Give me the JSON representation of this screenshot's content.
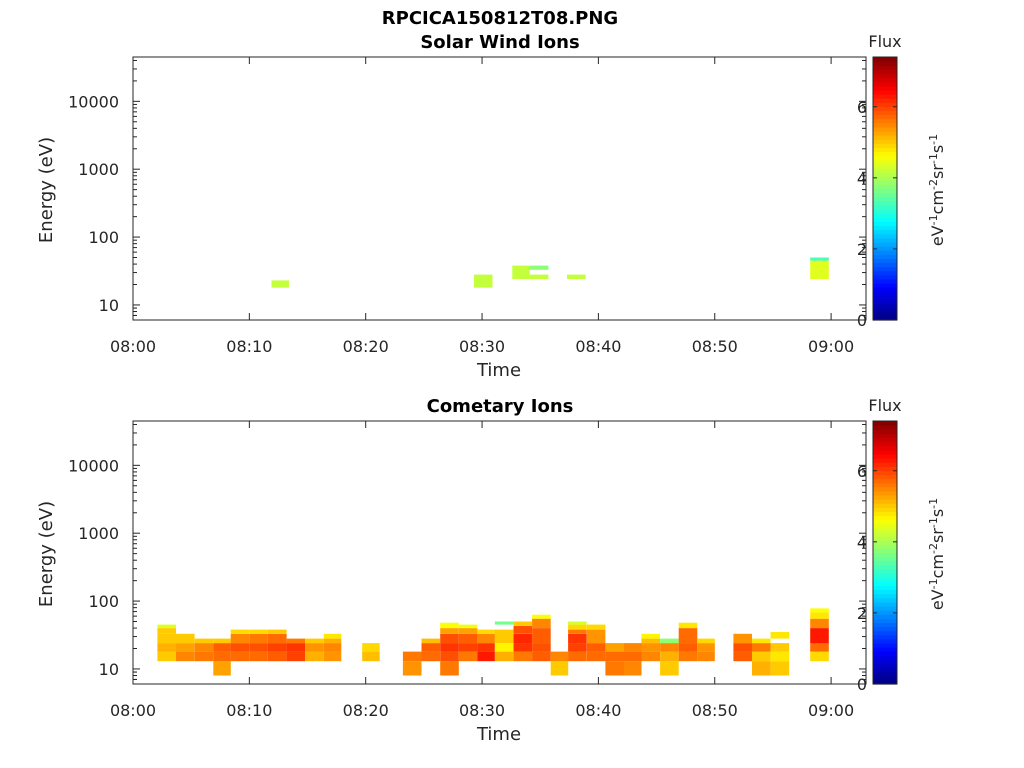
{
  "figure": {
    "title": "RPCICA150812T08.PNG"
  },
  "chart_data": [
    {
      "type": "heatmap",
      "title": "Solar Wind Ions",
      "xlabel": "Time",
      "ylabel": "Energy (eV)",
      "x_ticks": [
        "08:00",
        "08:10",
        "08:20",
        "08:30",
        "08:40",
        "08:50",
        "09:00"
      ],
      "x_range_min": [
        0,
        63
      ],
      "y_scale": "log",
      "y_range_eV": [
        6,
        45000
      ],
      "y_ticks": [
        "10",
        "100",
        "1000",
        "10000"
      ],
      "colorbar": {
        "label": "Flux",
        "unit": "eV-1 cm-2 sr-1 s-1",
        "min": 0,
        "max": 7.4,
        "ticks": [
          "0",
          "2",
          "4",
          "6"
        ]
      },
      "cells": [
        {
          "t0": 11.9,
          "t1": 13.4,
          "e0": 18,
          "e1": 23,
          "value": 4.2
        },
        {
          "t0": 29.3,
          "t1": 30.9,
          "e0": 18,
          "e1": 28,
          "value": 4.2
        },
        {
          "t0": 32.6,
          "t1": 34.1,
          "e0": 24,
          "e1": 38,
          "value": 4.2
        },
        {
          "t0": 34.1,
          "t1": 35.7,
          "e0": 24,
          "e1": 28,
          "value": 4.2
        },
        {
          "t0": 34.1,
          "t1": 35.7,
          "e0": 33,
          "e1": 38,
          "value": 3.8
        },
        {
          "t0": 37.3,
          "t1": 38.9,
          "e0": 24,
          "e1": 28,
          "value": 4.2
        },
        {
          "t0": 58.2,
          "t1": 59.8,
          "e0": 24,
          "e1": 45,
          "value": 4.4
        },
        {
          "t0": 58.2,
          "t1": 59.8,
          "e0": 45,
          "e1": 50,
          "value": 3.3
        }
      ]
    },
    {
      "type": "heatmap",
      "title": "Cometary Ions",
      "xlabel": "Time",
      "ylabel": "Energy (eV)",
      "x_ticks": [
        "08:00",
        "08:10",
        "08:20",
        "08:30",
        "08:40",
        "08:50",
        "09:00"
      ],
      "x_range_min": [
        0,
        63
      ],
      "y_scale": "log",
      "y_range_eV": [
        6,
        45000
      ],
      "y_ticks": [
        "10",
        "100",
        "1000",
        "10000"
      ],
      "colorbar": {
        "label": "Flux",
        "unit": "eV-1 cm-2 sr-1 s-1",
        "min": 0,
        "max": 7.4,
        "ticks": [
          "0",
          "2",
          "4",
          "6"
        ]
      },
      "columns": [
        {
          "t0": 2.1,
          "t1": 3.7,
          "bands": [
            [
              13,
              18,
              5.0
            ],
            [
              18,
              24,
              5.2
            ],
            [
              24,
              33,
              5.0
            ],
            [
              33,
              40,
              5.0
            ],
            [
              40,
              45,
              4.4
            ]
          ]
        },
        {
          "t0": 3.7,
          "t1": 5.3,
          "bands": [
            [
              13,
              18,
              5.5
            ],
            [
              18,
              24,
              5.3
            ],
            [
              24,
              33,
              5.0
            ]
          ]
        },
        {
          "t0": 5.3,
          "t1": 6.9,
          "bands": [
            [
              13,
              18,
              5.6
            ],
            [
              18,
              24,
              5.5
            ],
            [
              24,
              28,
              5.0
            ]
          ]
        },
        {
          "t0": 6.9,
          "t1": 8.4,
          "bands": [
            [
              8,
              13,
              5.3
            ],
            [
              13,
              18,
              5.7
            ],
            [
              18,
              24,
              5.8
            ],
            [
              24,
              28,
              5.0
            ]
          ]
        },
        {
          "t0": 8.4,
          "t1": 10.0,
          "bands": [
            [
              13,
              18,
              5.7
            ],
            [
              18,
              24,
              5.9
            ],
            [
              24,
              33,
              5.5
            ],
            [
              33,
              38,
              4.9
            ]
          ]
        },
        {
          "t0": 10.0,
          "t1": 11.6,
          "bands": [
            [
              13,
              18,
              5.7
            ],
            [
              18,
              24,
              5.9
            ],
            [
              24,
              33,
              5.6
            ],
            [
              33,
              38,
              4.9
            ]
          ]
        },
        {
          "t0": 11.6,
          "t1": 13.2,
          "bands": [
            [
              13,
              18,
              5.8
            ],
            [
              18,
              24,
              6.0
            ],
            [
              24,
              33,
              5.7
            ],
            [
              33,
              38,
              5.0
            ]
          ]
        },
        {
          "t0": 13.2,
          "t1": 14.8,
          "bands": [
            [
              13,
              18,
              6.0
            ],
            [
              18,
              24,
              6.1
            ],
            [
              24,
              28,
              5.6
            ]
          ]
        },
        {
          "t0": 14.8,
          "t1": 16.4,
          "bands": [
            [
              13,
              18,
              5.2
            ],
            [
              18,
              24,
              5.4
            ],
            [
              24,
              28,
              5.0
            ]
          ]
        },
        {
          "t0": 16.4,
          "t1": 17.9,
          "bands": [
            [
              13,
              18,
              5.4
            ],
            [
              18,
              24,
              5.5
            ],
            [
              24,
              28,
              5.2
            ],
            [
              28,
              33,
              4.8
            ]
          ]
        },
        {
          "t0": 19.7,
          "t1": 21.2,
          "bands": [
            [
              13,
              18,
              5.1
            ],
            [
              18,
              24,
              4.9
            ]
          ]
        },
        {
          "t0": 23.2,
          "t1": 24.8,
          "bands": [
            [
              8,
              13,
              5.4
            ],
            [
              13,
              18,
              5.6
            ]
          ]
        },
        {
          "t0": 24.8,
          "t1": 26.4,
          "bands": [
            [
              13,
              18,
              5.7
            ],
            [
              18,
              24,
              5.8
            ],
            [
              24,
              28,
              5.1
            ]
          ]
        },
        {
          "t0": 26.4,
          "t1": 28.0,
          "bands": [
            [
              8,
              13,
              5.6
            ],
            [
              13,
              18,
              5.9
            ],
            [
              18,
              24,
              6.1
            ],
            [
              24,
              33,
              5.9
            ],
            [
              33,
              40,
              5.3
            ],
            [
              40,
              48,
              4.6
            ]
          ]
        },
        {
          "t0": 28.0,
          "t1": 29.6,
          "bands": [
            [
              13,
              18,
              5.6
            ],
            [
              18,
              24,
              6.0
            ],
            [
              24,
              33,
              5.8
            ],
            [
              33,
              40,
              5.3
            ],
            [
              40,
              45,
              4.5
            ]
          ]
        },
        {
          "t0": 29.6,
          "t1": 31.1,
          "bands": [
            [
              13,
              18,
              6.3
            ],
            [
              18,
              24,
              6.1
            ],
            [
              24,
              33,
              5.5
            ],
            [
              33,
              38,
              4.9
            ]
          ]
        },
        {
          "t0": 31.1,
          "t1": 32.7,
          "bands": [
            [
              13,
              18,
              5.2
            ],
            [
              18,
              24,
              4.7
            ],
            [
              24,
              38,
              5.0
            ],
            [
              45,
              50,
              3.6
            ]
          ]
        },
        {
          "t0": 32.7,
          "t1": 34.3,
          "bands": [
            [
              13,
              18,
              5.6
            ],
            [
              18,
              24,
              6.1
            ],
            [
              24,
              33,
              6.2
            ],
            [
              33,
              43,
              5.9
            ],
            [
              43,
              50,
              5.0
            ]
          ]
        },
        {
          "t0": 34.3,
          "t1": 35.9,
          "bands": [
            [
              13,
              18,
              5.8
            ],
            [
              18,
              24,
              5.9
            ],
            [
              24,
              40,
              5.8
            ],
            [
              40,
              55,
              5.5
            ],
            [
              55,
              63,
              4.6
            ]
          ]
        },
        {
          "t0": 35.9,
          "t1": 37.4,
          "bands": [
            [
              8,
              13,
              5.0
            ],
            [
              13,
              18,
              5.5
            ]
          ]
        },
        {
          "t0": 37.4,
          "t1": 39.0,
          "bands": [
            [
              13,
              18,
              5.7
            ],
            [
              18,
              24,
              6.0
            ],
            [
              24,
              33,
              6.1
            ],
            [
              33,
              38,
              5.6
            ],
            [
              38,
              45,
              4.9
            ],
            [
              45,
              50,
              4.3
            ]
          ]
        },
        {
          "t0": 39.0,
          "t1": 40.6,
          "bands": [
            [
              13,
              18,
              5.7
            ],
            [
              18,
              24,
              5.8
            ],
            [
              24,
              38,
              5.4
            ],
            [
              38,
              45,
              4.9
            ]
          ]
        },
        {
          "t0": 40.6,
          "t1": 42.2,
          "bands": [
            [
              8,
              13,
              5.6
            ],
            [
              13,
              18,
              5.7
            ],
            [
              18,
              24,
              5.3
            ]
          ]
        },
        {
          "t0": 42.2,
          "t1": 43.7,
          "bands": [
            [
              8,
              13,
              5.5
            ],
            [
              13,
              18,
              5.7
            ],
            [
              18,
              24,
              5.5
            ]
          ]
        },
        {
          "t0": 43.7,
          "t1": 45.3,
          "bands": [
            [
              13,
              18,
              5.5
            ],
            [
              18,
              24,
              5.4
            ],
            [
              24,
              28,
              5.1
            ],
            [
              28,
              33,
              4.7
            ]
          ]
        },
        {
          "t0": 45.3,
          "t1": 46.9,
          "bands": [
            [
              8,
              13,
              5.0
            ],
            [
              13,
              18,
              5.2
            ],
            [
              18,
              24,
              5.5
            ],
            [
              24,
              28,
              3.8
            ]
          ]
        },
        {
          "t0": 46.9,
          "t1": 48.5,
          "bands": [
            [
              13,
              18,
              5.6
            ],
            [
              18,
              24,
              5.8
            ],
            [
              24,
              40,
              5.7
            ],
            [
              40,
              48,
              4.8
            ]
          ]
        },
        {
          "t0": 48.5,
          "t1": 50.0,
          "bands": [
            [
              13,
              18,
              5.5
            ],
            [
              18,
              24,
              5.4
            ],
            [
              24,
              28,
              4.9
            ]
          ]
        },
        {
          "t0": 51.6,
          "t1": 53.2,
          "bands": [
            [
              13,
              18,
              5.8
            ],
            [
              18,
              24,
              5.9
            ],
            [
              24,
              33,
              5.4
            ]
          ]
        },
        {
          "t0": 53.2,
          "t1": 54.8,
          "bands": [
            [
              8,
              13,
              5.2
            ],
            [
              13,
              18,
              5.0
            ],
            [
              18,
              24,
              5.6
            ],
            [
              24,
              28,
              4.8
            ]
          ]
        },
        {
          "t0": 54.8,
          "t1": 56.4,
          "bands": [
            [
              8,
              13,
              5.0
            ],
            [
              13,
              18,
              4.8
            ],
            [
              18,
              24,
              5.0
            ],
            [
              28,
              35,
              4.8
            ]
          ]
        },
        {
          "t0": 58.2,
          "t1": 59.8,
          "bands": [
            [
              13,
              18,
              4.9
            ],
            [
              18,
              24,
              5.7
            ],
            [
              24,
              40,
              6.3
            ],
            [
              40,
              55,
              5.5
            ],
            [
              55,
              68,
              4.8
            ],
            [
              68,
              78,
              4.6
            ]
          ]
        }
      ]
    }
  ]
}
